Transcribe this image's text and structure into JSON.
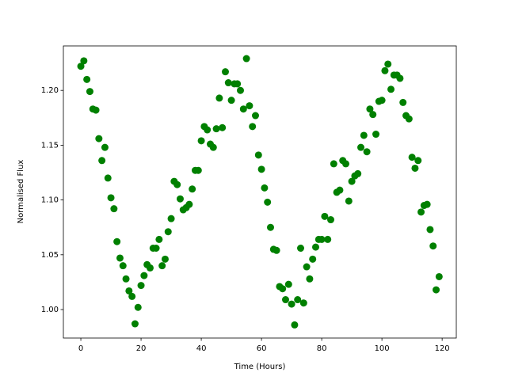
{
  "chart_data": {
    "type": "scatter",
    "x_label": "Time (Hours)",
    "y_label": "Normalised Flux",
    "color": "#008000",
    "xlim": [
      -5.8,
      124.7
    ],
    "ylim": [
      0.974,
      1.2406
    ],
    "xticks": [
      0,
      20,
      40,
      60,
      80,
      100,
      120
    ],
    "yticks": [
      {
        "value": 1.0,
        "label": "1.00"
      },
      {
        "value": 1.05,
        "label": "1.05"
      },
      {
        "value": 1.1,
        "label": "1.10"
      },
      {
        "value": 1.15,
        "label": "1.15"
      },
      {
        "value": 1.2,
        "label": "1.20"
      }
    ],
    "x": [
      0,
      1,
      2,
      3,
      4,
      5,
      6,
      7,
      8,
      9,
      10,
      11,
      12,
      13,
      14,
      15,
      16,
      17,
      18,
      19,
      20,
      21,
      22,
      23,
      24,
      25,
      26,
      27,
      28,
      29,
      30,
      31,
      32,
      33,
      34,
      35,
      36,
      37,
      38,
      39,
      40,
      41,
      42,
      43,
      44,
      45,
      46,
      47,
      48,
      49,
      50,
      51,
      52,
      53,
      54,
      55,
      56,
      57,
      58,
      59,
      60,
      61,
      62,
      63,
      64,
      65,
      66,
      67,
      68,
      69,
      70,
      71,
      72,
      73,
      74,
      75,
      76,
      77,
      78,
      79,
      80,
      81,
      82,
      83,
      84,
      85,
      86,
      87,
      88,
      89,
      90,
      91,
      92,
      93,
      94,
      95,
      96,
      97,
      98,
      99,
      100,
      101,
      102,
      103,
      104,
      105,
      106,
      107,
      108,
      109,
      110,
      111,
      112,
      113,
      114,
      115,
      116,
      117,
      118,
      119
    ],
    "values": [
      1.222,
      1.227,
      1.21,
      1.199,
      1.183,
      1.182,
      1.156,
      1.136,
      1.148,
      1.12,
      1.102,
      1.092,
      1.062,
      1.047,
      1.04,
      1.028,
      1.017,
      1.012,
      0.987,
      1.002,
      1.022,
      1.031,
      1.041,
      1.038,
      1.056,
      1.056,
      1.064,
      1.04,
      1.046,
      1.071,
      1.083,
      1.117,
      1.114,
      1.101,
      1.091,
      1.093,
      1.096,
      1.11,
      1.127,
      1.127,
      1.154,
      1.167,
      1.164,
      1.151,
      1.148,
      1.165,
      1.193,
      1.166,
      1.217,
      1.207,
      1.191,
      1.206,
      1.206,
      1.2,
      1.183,
      1.229,
      1.186,
      1.167,
      1.177,
      1.141,
      1.128,
      1.111,
      1.098,
      1.075,
      1.055,
      1.054,
      1.021,
      1.019,
      1.009,
      1.023,
      1.005,
      0.986,
      1.009,
      1.056,
      1.006,
      1.039,
      1.028,
      1.046,
      1.057,
      1.064,
      1.064,
      1.085,
      1.064,
      1.082,
      1.133,
      1.107,
      1.109,
      1.136,
      1.133,
      1.099,
      1.117,
      1.122,
      1.124,
      1.148,
      1.159,
      1.144,
      1.183,
      1.178,
      1.16,
      1.19,
      1.191,
      1.218,
      1.224,
      1.201,
      1.214,
      1.214,
      1.211,
      1.189,
      1.177,
      1.174,
      1.139,
      1.129,
      1.136,
      1.089,
      1.095,
      1.096,
      1.073,
      1.058,
      1.018,
      1.03
    ]
  }
}
